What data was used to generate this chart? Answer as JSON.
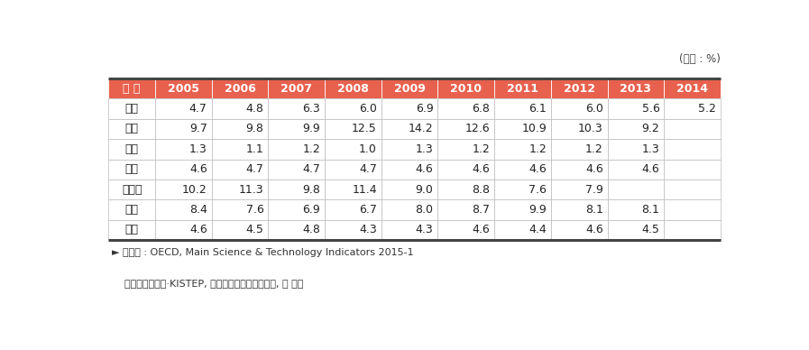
{
  "unit_label": "(단위 : %)",
  "header": [
    "구 분",
    "2005",
    "2006",
    "2007",
    "2008",
    "2009",
    "2010",
    "2011",
    "2012",
    "2013",
    "2014"
  ],
  "rows": [
    {
      "label": "한국",
      "values": [
        "4.7",
        "4.8",
        "6.3",
        "6.0",
        "6.9",
        "6.8",
        "6.1",
        "6.0",
        "5.6",
        "5.2"
      ]
    },
    {
      "label": "미국",
      "values": [
        "9.7",
        "9.8",
        "9.9",
        "12.5",
        "14.2",
        "12.6",
        "10.9",
        "10.3",
        "9.2",
        ""
      ]
    },
    {
      "label": "일본",
      "values": [
        "1.3",
        "1.1",
        "1.2",
        "1.0",
        "1.3",
        "1.2",
        "1.2",
        "1.2",
        "1.3",
        ""
      ]
    },
    {
      "label": "독일",
      "values": [
        "4.6",
        "4.7",
        "4.7",
        "4.7",
        "4.6",
        "4.6",
        "4.6",
        "4.6",
        "4.6",
        ""
      ]
    },
    {
      "label": "프랑스",
      "values": [
        "10.2",
        "11.3",
        "9.8",
        "11.4",
        "9.0",
        "8.8",
        "7.6",
        "7.9",
        "",
        ""
      ]
    },
    {
      "label": "영국",
      "values": [
        "8.4",
        "7.6",
        "6.9",
        "6.7",
        "8.0",
        "8.7",
        "9.9",
        "8.1",
        "8.1",
        ""
      ]
    },
    {
      "label": "중국",
      "values": [
        "4.6",
        "4.5",
        "4.8",
        "4.3",
        "4.3",
        "4.6",
        "4.4",
        "4.6",
        "4.5",
        ""
      ]
    }
  ],
  "footer_lines": [
    "► 자료원 : OECD, Main Science & Technology Indicators 2015-1",
    "    미래창조과학부·KISTEP, 연구개발활동조사보고서, 각 년도"
  ],
  "header_bg": "#E8614E",
  "header_fg": "#FFFFFF",
  "border_color": "#BBBBBB",
  "thick_border_color": "#444444",
  "text_color": "#222222",
  "footer_color": "#333333"
}
